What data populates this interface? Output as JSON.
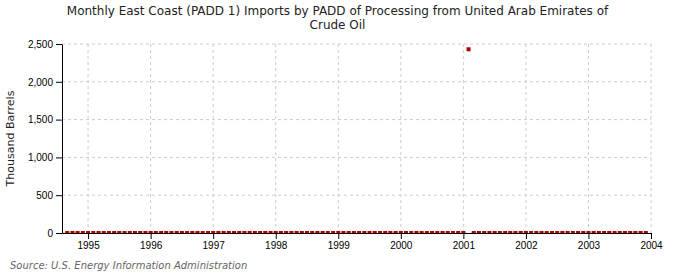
{
  "chart_data": {
    "type": "scatter",
    "title": "Monthly East Coast (PADD 1) Imports by PADD of Processing from United Arab Emirates of\nCrude Oil",
    "ylabel": "Thousand Barrels",
    "source": "Source: U.S. Energy Information Administration",
    "color": "#aa0000",
    "marker": "square",
    "grid": true,
    "xlim": [
      1994.583,
      2004.0
    ],
    "ylim": [
      0,
      2500
    ],
    "xticks": [
      1995,
      1996,
      1997,
      1998,
      1999,
      2000,
      2001,
      2002,
      2003,
      2004
    ],
    "yticks": [
      0,
      500,
      {
        "value": 1000,
        "label": "1,000"
      },
      {
        "value": 1500,
        "label": "1,500"
      },
      {
        "value": 2000,
        "label": "2,000"
      },
      {
        "value": 2500,
        "label": "2,500"
      }
    ],
    "x": [
      1994.667,
      1994.75,
      1994.833,
      1994.917,
      1995.0,
      1995.083,
      1995.167,
      1995.25,
      1995.333,
      1995.417,
      1995.5,
      1995.583,
      1995.667,
      1995.75,
      1995.833,
      1995.917,
      1996.0,
      1996.083,
      1996.167,
      1996.25,
      1996.333,
      1996.417,
      1996.5,
      1996.583,
      1996.667,
      1996.75,
      1996.833,
      1996.917,
      1997.0,
      1997.083,
      1997.167,
      1997.25,
      1997.333,
      1997.417,
      1997.5,
      1997.583,
      1997.667,
      1997.75,
      1997.833,
      1997.917,
      1998.0,
      1998.083,
      1998.167,
      1998.25,
      1998.333,
      1998.417,
      1998.5,
      1998.583,
      1998.667,
      1998.75,
      1998.833,
      1998.917,
      1999.0,
      1999.083,
      1999.167,
      1999.25,
      1999.333,
      1999.417,
      1999.5,
      1999.583,
      1999.667,
      1999.75,
      1999.833,
      1999.917,
      2000.0,
      2000.083,
      2000.167,
      2000.25,
      2000.333,
      2000.417,
      2000.5,
      2000.583,
      2000.667,
      2000.75,
      2000.833,
      2000.917,
      2001.0,
      2001.083,
      2001.167,
      2001.25,
      2001.333,
      2001.417,
      2001.5,
      2001.583,
      2001.667,
      2001.75,
      2001.833,
      2001.917,
      2002.0,
      2002.083,
      2002.167,
      2002.25,
      2002.333,
      2002.417,
      2002.5,
      2002.583,
      2002.667,
      2002.75,
      2002.833,
      2002.917,
      2003.0,
      2003.083,
      2003.167,
      2003.25,
      2003.333,
      2003.417,
      2003.5,
      2003.583,
      2003.667,
      2003.75,
      2003.833,
      2003.917
    ],
    "values": [
      0,
      0,
      0,
      0,
      0,
      0,
      0,
      0,
      0,
      0,
      0,
      0,
      0,
      0,
      0,
      0,
      0,
      0,
      0,
      0,
      0,
      0,
      0,
      0,
      0,
      0,
      0,
      0,
      0,
      0,
      0,
      0,
      0,
      0,
      0,
      0,
      0,
      0,
      0,
      0,
      0,
      0,
      0,
      0,
      0,
      0,
      0,
      0,
      0,
      0,
      0,
      0,
      0,
      0,
      0,
      0,
      0,
      0,
      0,
      0,
      0,
      0,
      0,
      0,
      0,
      0,
      0,
      0,
      0,
      0,
      0,
      0,
      0,
      0,
      0,
      0,
      0,
      2430,
      0,
      0,
      0,
      0,
      0,
      0,
      0,
      0,
      0,
      0,
      0,
      0,
      0,
      0,
      0,
      0,
      0,
      0,
      0,
      0,
      0,
      0,
      0,
      0,
      0,
      0,
      0,
      0,
      0,
      0,
      0,
      0,
      0,
      0
    ]
  }
}
